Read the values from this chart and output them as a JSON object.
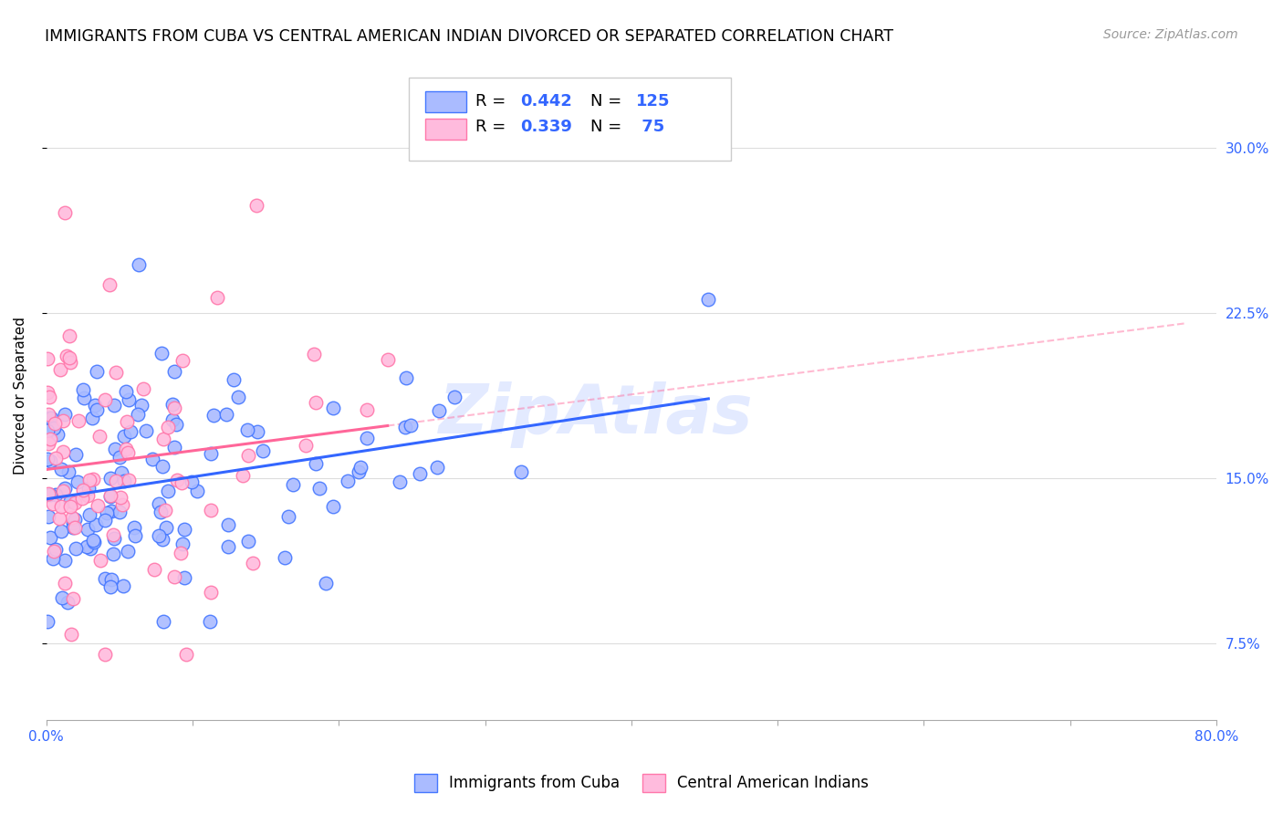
{
  "title": "IMMIGRANTS FROM CUBA VS CENTRAL AMERICAN INDIAN DIVORCED OR SEPARATED CORRELATION CHART",
  "source": "Source: ZipAtlas.com",
  "ylabel": "Divorced or Separated",
  "yticks": [
    "7.5%",
    "15.0%",
    "22.5%",
    "30.0%"
  ],
  "ytick_vals": [
    0.075,
    0.15,
    0.225,
    0.3
  ],
  "xlim": [
    0.0,
    0.8
  ],
  "ylim": [
    0.04,
    0.335
  ],
  "legend_label_blue": "Immigrants from Cuba",
  "legend_label_pink": "Central American Indians",
  "color_blue_fill": "#aabbff",
  "color_pink_fill": "#ffbbdd",
  "color_blue_edge": "#4477ff",
  "color_pink_edge": "#ff77aa",
  "color_blue_line": "#3366ff",
  "color_pink_line": "#ff6699",
  "watermark": "ZipAtlas",
  "title_fontsize": 12.5,
  "source_fontsize": 10,
  "axis_label_fontsize": 11,
  "tick_fontsize": 11,
  "legend_fontsize": 13,
  "blue_n": 125,
  "pink_n": 75,
  "blue_seed": 12,
  "pink_seed": 5
}
